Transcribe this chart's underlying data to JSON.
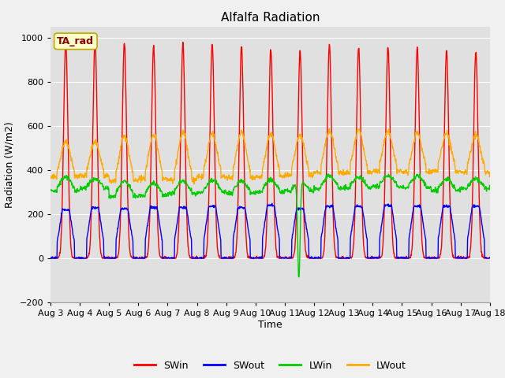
{
  "title": "Alfalfa Radiation",
  "xlabel": "Time",
  "ylabel": "Radiation (W/m2)",
  "ylim": [
    -200,
    1050
  ],
  "xlim_days": [
    0,
    15
  ],
  "x_tick_labels": [
    "Aug 3",
    "Aug 4",
    "Aug 5",
    "Aug 6",
    "Aug 7",
    "Aug 8",
    "Aug 9",
    "Aug 10",
    "Aug 11",
    "Aug 12",
    "Aug 13",
    "Aug 14",
    "Aug 15",
    "Aug 16",
    "Aug 17",
    "Aug 18"
  ],
  "colors": {
    "SWin": "#ff0000",
    "SWout": "#0000ff",
    "LWin": "#00cc00",
    "LWout": "#ffaa00"
  },
  "legend_label": "TA_rad",
  "plot_bg": "#e0e0e0",
  "fig_bg": "#f0f0f0",
  "grid_color": "#ffffff",
  "n_days": 15,
  "dt_min": 15
}
